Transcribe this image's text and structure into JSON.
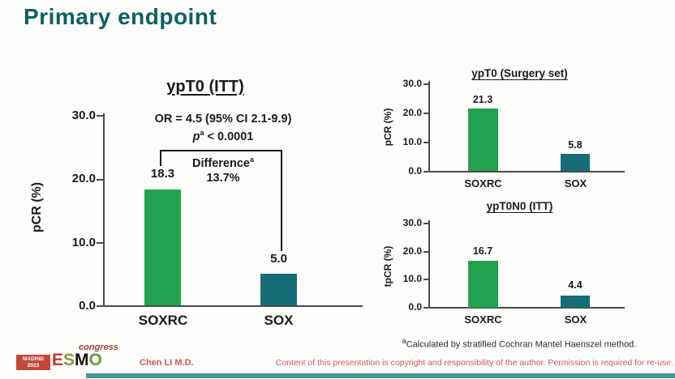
{
  "slide": {
    "title": "Primary endpoint"
  },
  "colors": {
    "title_teal": "#0c6164",
    "bar_colors": [
      "#22a24f",
      "#166d78"
    ],
    "red_text": "#cd5a50",
    "footer_bar_teal": "#449792",
    "logo_red": "#c4473e"
  },
  "chart_data": [
    {
      "id": "main",
      "type": "bar",
      "title": "ypT0 (ITT)",
      "ylabel": "pCR (%)",
      "categories": [
        "SOXRC",
        "SOX"
      ],
      "values": [
        18.3,
        5.0
      ],
      "value_labels": [
        "18.3",
        "5.0"
      ],
      "ylim": [
        0,
        30
      ],
      "yticks": [
        30,
        20,
        10,
        0
      ],
      "yticks_display": [
        "30.0",
        "20.0",
        "10.0",
        "0.0"
      ],
      "grid": false,
      "annotations": {
        "or_line": "OR = 4.5 (95% CI 2.1-9.9)",
        "p_italic": "p",
        "p_sup": "a",
        "p_rest": " < 0.0001",
        "diff_label": "Difference",
        "diff_sup": "a",
        "diff_value": "13.7%"
      }
    },
    {
      "id": "surgery-set",
      "type": "bar",
      "title": "ypT0 (Surgery set)",
      "ylabel": "pCR (%)",
      "categories": [
        "SOXRC",
        "SOX"
      ],
      "values": [
        21.3,
        5.8
      ],
      "value_labels": [
        "21.3",
        "5.8"
      ],
      "ylim": [
        0,
        30
      ],
      "yticks": [
        30,
        20,
        10,
        0
      ],
      "yticks_display": [
        "30.0",
        "20.0",
        "10.0",
        "0.0"
      ],
      "grid": false
    },
    {
      "id": "ypt0n0",
      "type": "bar",
      "title": "ypT0N0 (ITT)",
      "ylabel": "tpCR (%)",
      "categories": [
        "SOXRC",
        "SOX"
      ],
      "values": [
        16.7,
        4.4
      ],
      "value_labels": [
        "16.7",
        "4.4"
      ],
      "ylim": [
        0,
        30
      ],
      "yticks": [
        30,
        20,
        10,
        0
      ],
      "yticks_display": [
        "30.0",
        "20.0",
        "10.0",
        "0.0"
      ],
      "grid": false
    }
  ],
  "footnote": {
    "sup": "a",
    "text": "Calculated by stratified Cochran Mantel Haenszel method."
  },
  "footer": {
    "logo": {
      "venue": "MADRID",
      "year": "2023",
      "e": "E",
      "s": "S",
      "m": "M",
      "o": "O",
      "congress": "congress"
    },
    "author": "Chen LI M.D.",
    "copyright": "Content of this presentation is copyright and responsibility of the author. Permission is required for re-use."
  }
}
